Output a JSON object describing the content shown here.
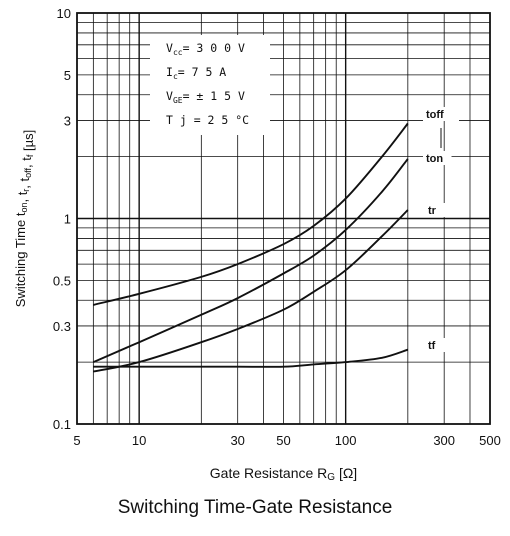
{
  "caption": "Switching Time-Gate Resistance",
  "chart_data": {
    "type": "line",
    "title": "Switching Time-Gate Resistance",
    "xlabel": "Gate Resistance Rₐ [Ω]",
    "xlabel_main": "Gate Resistance R",
    "xlabel_sub": "G",
    "xlabel_unit": "[Ω]",
    "ylabel": "Switching Time tₒₙ, tᵣ, tₒₒₒ, tᵣ [µs]",
    "ylabel_text": "Switching Time t",
    "ylabel_parts": [
      {
        "t": "Switching Time t",
        "sub": false
      },
      {
        "t": "on",
        "sub": true
      },
      {
        "t": ", t",
        "sub": false
      },
      {
        "t": "r",
        "sub": true
      },
      {
        "t": ", t",
        "sub": false
      },
      {
        "t": "off",
        "sub": true
      },
      {
        "t": ", t",
        "sub": false
      },
      {
        "t": "f",
        "sub": true
      },
      {
        "t": " [µs]",
        "sub": false
      }
    ],
    "x_scale": "log",
    "y_scale": "log",
    "xlim": [
      5,
      500
    ],
    "ylim": [
      0.1,
      10
    ],
    "grid": true,
    "x_tick_labels": [
      {
        "value": 5,
        "label": "5"
      },
      {
        "value": 10,
        "label": "10"
      },
      {
        "value": 30,
        "label": "30"
      },
      {
        "value": 50,
        "label": "50"
      },
      {
        "value": 100,
        "label": "100"
      },
      {
        "value": 300,
        "label": "300"
      },
      {
        "value": 500,
        "label": "500"
      }
    ],
    "y_tick_labels": [
      {
        "value": 0.1,
        "label": "0.1"
      },
      {
        "value": 0.3,
        "label": "0.3"
      },
      {
        "value": 0.5,
        "label": "0.5"
      },
      {
        "value": 1,
        "label": "1"
      },
      {
        "value": 3,
        "label": "3"
      },
      {
        "value": 5,
        "label": "5"
      },
      {
        "value": 10,
        "label": "10"
      }
    ],
    "conditions": [
      {
        "label": "Vcc",
        "sub": "cc",
        "main": "V",
        "value": "= 3 0 0 V"
      },
      {
        "label": "Ic",
        "sub": "c",
        "main": "I",
        "value": "= 7 5 A"
      },
      {
        "label": "VGE",
        "sub": "GE",
        "main": "V",
        "value": "= ± 1 5 V"
      },
      {
        "label": "Tj",
        "sub": "",
        "main": "T j",
        "value": " = 2 5 °C"
      }
    ],
    "series": [
      {
        "name": "toff",
        "x": [
          6,
          10,
          20,
          30,
          50,
          70,
          100,
          150,
          200
        ],
        "values": [
          0.38,
          0.43,
          0.52,
          0.6,
          0.75,
          0.92,
          1.25,
          2.0,
          2.9
        ]
      },
      {
        "name": "ton",
        "x": [
          6,
          10,
          20,
          30,
          50,
          70,
          100,
          150,
          200
        ],
        "values": [
          0.2,
          0.25,
          0.34,
          0.41,
          0.54,
          0.66,
          0.88,
          1.35,
          1.95
        ]
      },
      {
        "name": "tr",
        "x": [
          6,
          10,
          20,
          30,
          50,
          70,
          100,
          150,
          200
        ],
        "values": [
          0.18,
          0.2,
          0.25,
          0.29,
          0.36,
          0.44,
          0.56,
          0.82,
          1.1
        ]
      },
      {
        "name": "tf",
        "x": [
          6,
          10,
          20,
          30,
          50,
          70,
          100,
          150,
          200
        ],
        "values": [
          0.19,
          0.19,
          0.19,
          0.19,
          0.19,
          0.195,
          0.2,
          0.21,
          0.23
        ]
      }
    ]
  }
}
